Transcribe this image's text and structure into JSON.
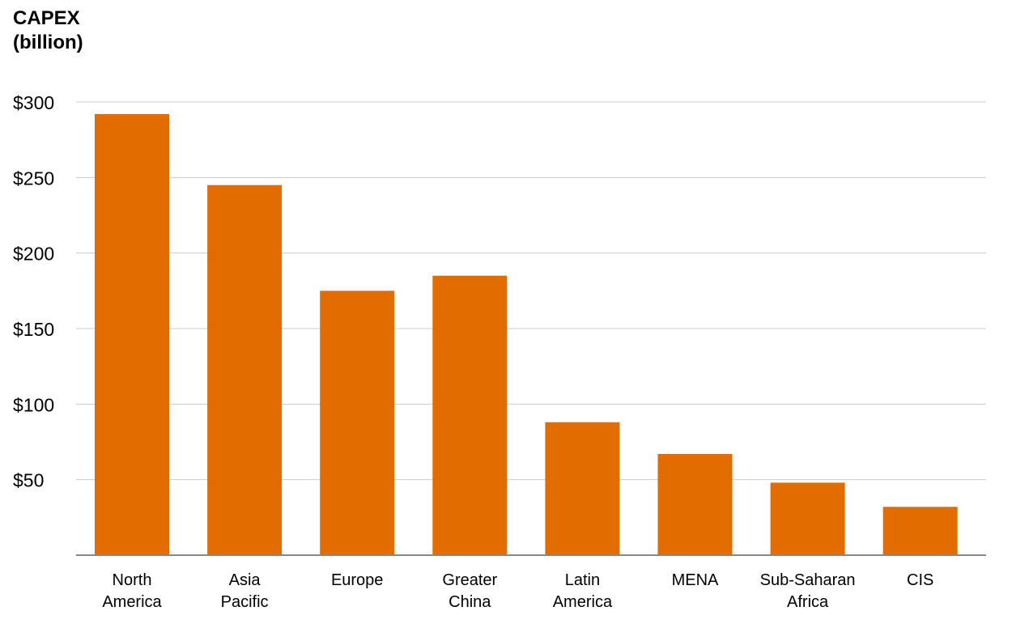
{
  "colors": {
    "bar": "#E36C00",
    "grid": "#CCCCCC",
    "axis": "#888888",
    "text": "#000000"
  },
  "chart_data": {
    "type": "bar",
    "title": "",
    "ylabel_lines": [
      "CAPEX",
      "(billion)"
    ],
    "xlabel": "",
    "ylim": [
      0,
      300
    ],
    "yticks": [
      50,
      100,
      150,
      200,
      250,
      300
    ],
    "ytick_labels": [
      "$50",
      "$100",
      "$150",
      "$200",
      "$250",
      "$300"
    ],
    "grid": true,
    "legend": "none",
    "categories": [
      [
        "North",
        "America"
      ],
      [
        "Asia",
        "Pacific"
      ],
      [
        "Europe"
      ],
      [
        "Greater",
        "China"
      ],
      [
        "Latin",
        "America"
      ],
      [
        "MENA"
      ],
      [
        "Sub-Saharan",
        "Africa"
      ],
      [
        "CIS"
      ]
    ],
    "values": [
      292,
      245,
      175,
      185,
      88,
      67,
      48,
      32
    ]
  }
}
